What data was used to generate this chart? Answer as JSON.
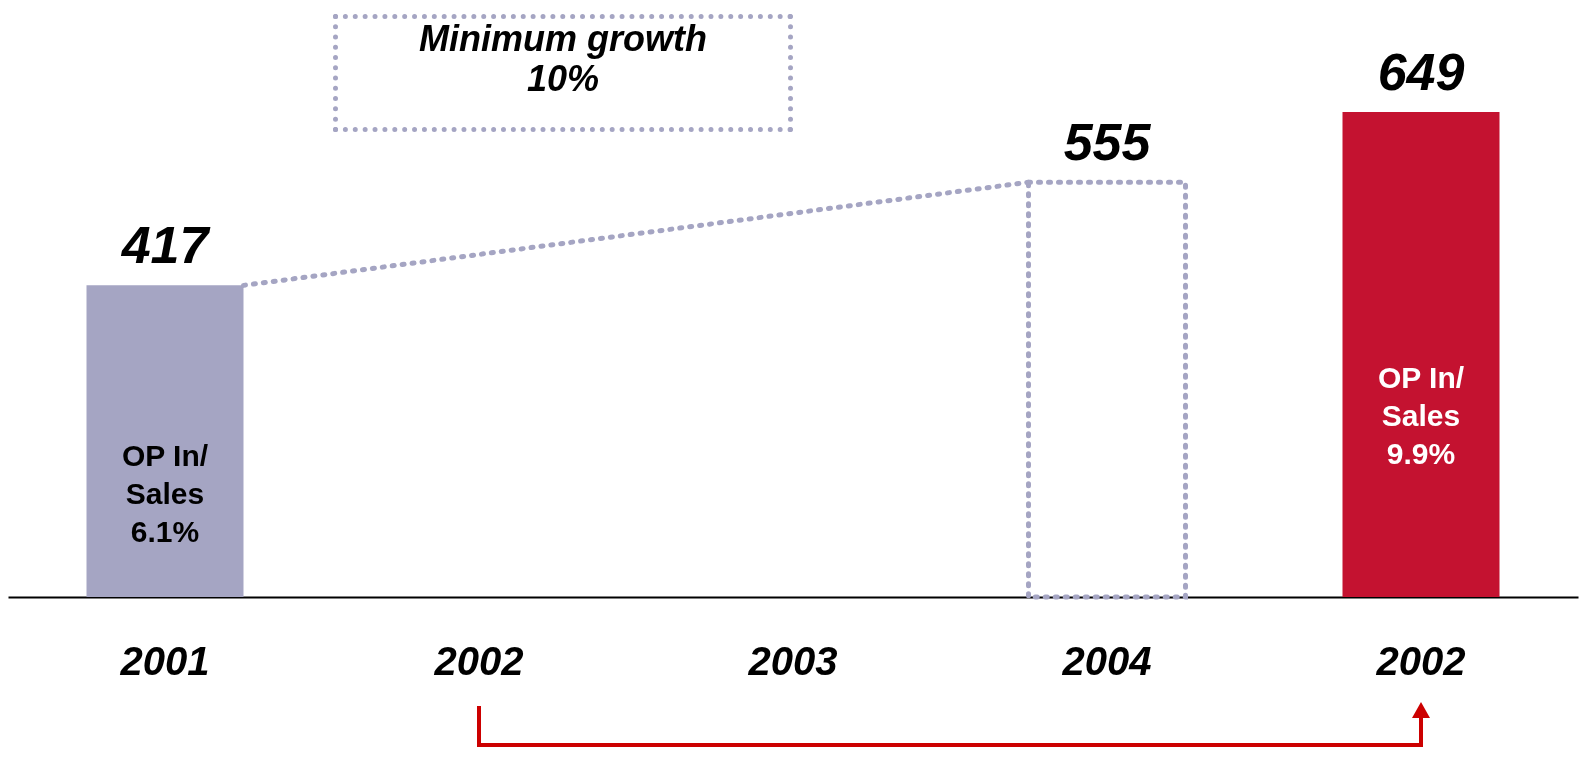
{
  "chart_data": {
    "type": "bar",
    "categories": [
      "2001",
      "2002",
      "2003",
      "2004",
      "2002"
    ],
    "series": [
      {
        "type": "bar",
        "colors": [
          "#a5a5c3",
          null,
          null,
          null,
          "#c41230"
        ],
        "values": [
          417,
          null,
          null,
          null,
          649
        ]
      },
      {
        "type": "bar",
        "line_style": "dotted",
        "color": "#a5a5c3",
        "values": [
          null,
          null,
          null,
          555,
          null
        ]
      }
    ],
    "data_labels": true,
    "annotations": [
      "Minimum growth\n10%",
      "OP In/\nSales\n6.1%",
      "OP In/\nSales\n9.9%"
    ]
  }
}
